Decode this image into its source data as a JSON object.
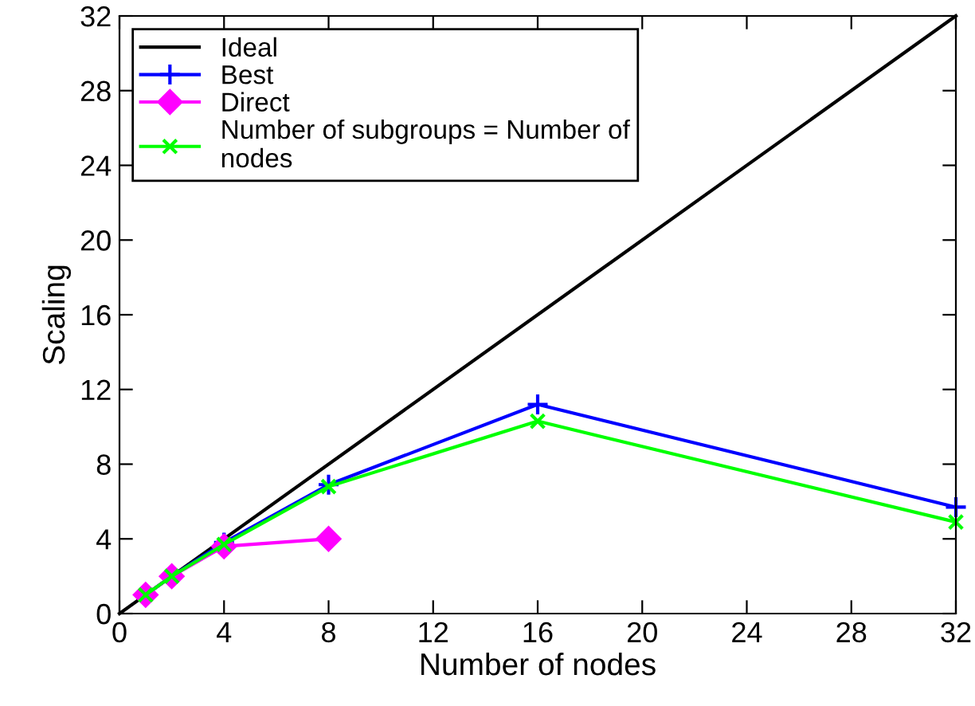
{
  "chart_data": {
    "type": "line",
    "xlabel": "Number of nodes",
    "ylabel": "Scaling",
    "xlim": [
      0,
      32
    ],
    "ylim": [
      0,
      32
    ],
    "xticks": [
      0,
      4,
      8,
      12,
      16,
      20,
      24,
      28,
      32
    ],
    "yticks": [
      0,
      4,
      8,
      12,
      16,
      20,
      24,
      28,
      32
    ],
    "grid": false,
    "legend": "top left",
    "series": [
      {
        "name": "Ideal",
        "color": "#000000",
        "x": [
          0,
          32
        ],
        "values": [
          0,
          32
        ],
        "marker": "none"
      },
      {
        "name": "Best",
        "color": "#0000ff",
        "x": [
          1,
          2,
          4,
          8,
          16,
          32
        ],
        "values": [
          1,
          2,
          3.8,
          6.9,
          11.2,
          5.7
        ],
        "marker": "cross"
      },
      {
        "name": "Direct",
        "color": "#ff00ff",
        "x": [
          1,
          2,
          4,
          8
        ],
        "values": [
          1,
          2,
          3.6,
          4.0
        ],
        "marker": "diamond"
      },
      {
        "name": "Number of subgroups = Number of\nnodes",
        "color": "#00ff00",
        "x": [
          1,
          2,
          4,
          8,
          16,
          32
        ],
        "values": [
          1,
          2,
          3.7,
          6.8,
          10.3,
          4.9
        ],
        "marker": "x"
      }
    ]
  }
}
